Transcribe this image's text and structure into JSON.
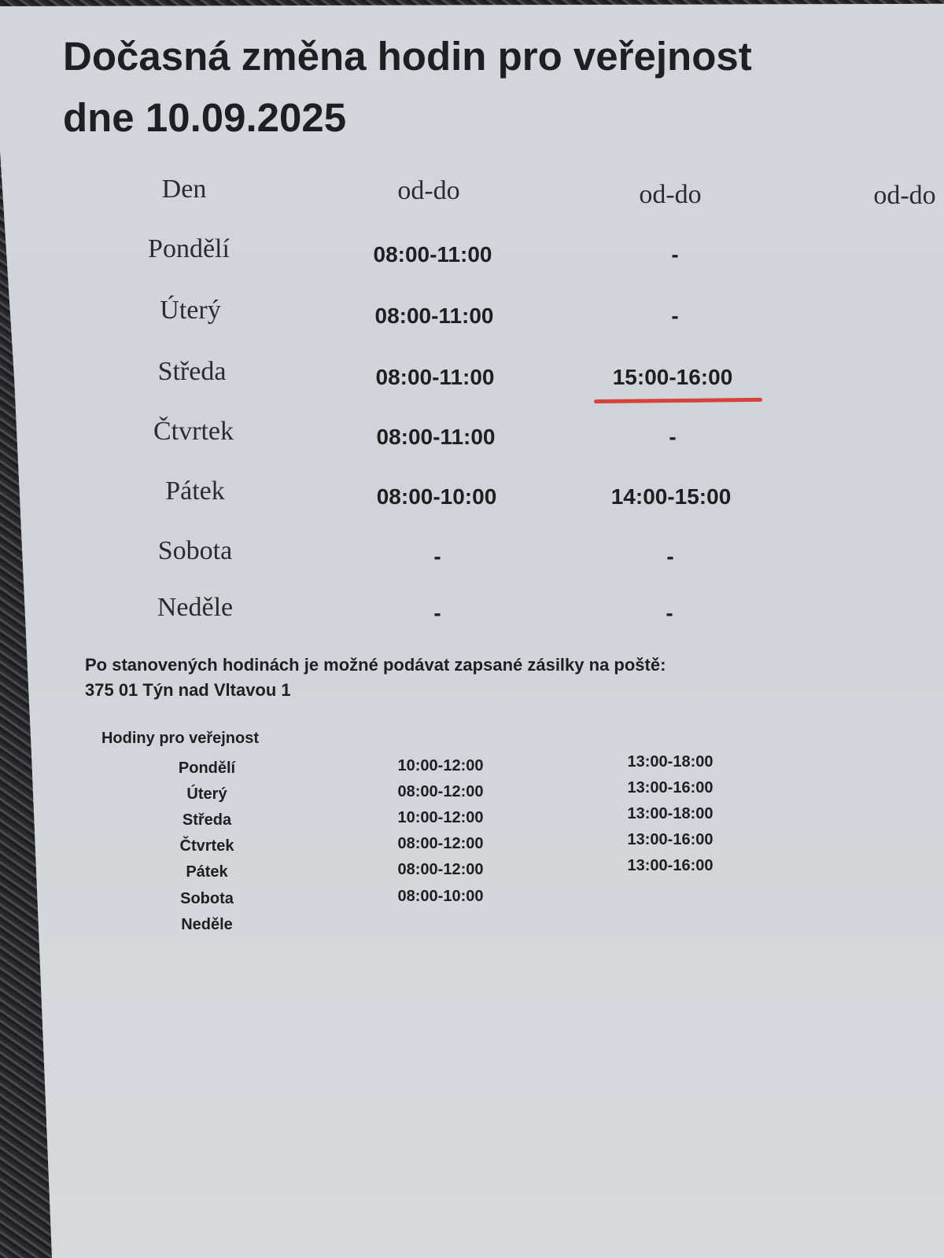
{
  "title": {
    "line1": "Dočasná změna hodin pro veřejnost",
    "line2": "dne 10.09.2025"
  },
  "temp_table": {
    "headers": [
      "Den",
      "od-do",
      "od-do",
      "od-do"
    ],
    "rows": [
      {
        "day": "Pondělí",
        "t1": "08:00-11:00",
        "t2": "-"
      },
      {
        "day": "Úterý",
        "t1": "08:00-11:00",
        "t2": "-"
      },
      {
        "day": "Středa",
        "t1": "08:00-11:00",
        "t2": "15:00-16:00"
      },
      {
        "day": "Čtvrtek",
        "t1": "08:00-11:00",
        "t2": "-"
      },
      {
        "day": "Pátek",
        "t1": "08:00-10:00",
        "t2": "14:00-15:00"
      },
      {
        "day": "Sobota",
        "t1": "-",
        "t2": "-"
      },
      {
        "day": "Neděle",
        "t1": "-",
        "t2": "-"
      }
    ],
    "highlight_color": "#d6433a"
  },
  "note": {
    "line1": "Po stanovených hodinách je možné podávat zapsané zásilky na poště:",
    "line2": "375 01 Týn nad Vltavou 1"
  },
  "regular": {
    "heading": "Hodiny pro veřejnost",
    "rows": [
      {
        "day": "Pondělí",
        "t1": "10:00-12:00",
        "t2": "13:00-18:00"
      },
      {
        "day": "Úterý",
        "t1": "08:00-12:00",
        "t2": "13:00-16:00"
      },
      {
        "day": "Středa",
        "t1": "10:00-12:00",
        "t2": "13:00-18:00"
      },
      {
        "day": "Čtvrtek",
        "t1": "08:00-12:00",
        "t2": "13:00-16:00"
      },
      {
        "day": "Pátek",
        "t1": "08:00-12:00",
        "t2": "13:00-16:00"
      },
      {
        "day": "Sobota",
        "t1": "08:00-10:00",
        "t2": ""
      },
      {
        "day": "Neděle",
        "t1": "",
        "t2": ""
      }
    ]
  }
}
